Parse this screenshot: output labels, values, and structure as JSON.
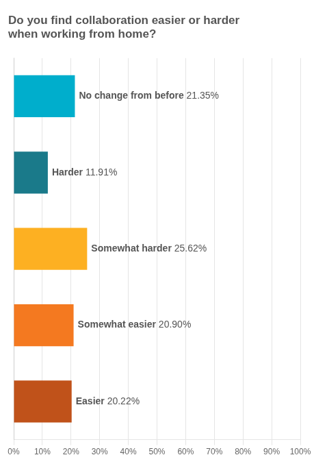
{
  "chart_data": {
    "type": "bar",
    "title": "Do you find collaboration easier or harder\nwhen working from home?",
    "orientation": "horizontal",
    "categories": [
      "Easier",
      "Somewhat easier",
      "Somewhat harder",
      "Harder",
      "No change from before"
    ],
    "values": [
      20.22,
      20.9,
      25.62,
      11.91,
      21.35
    ],
    "value_labels": [
      "20.22%",
      "20.90%",
      "25.62%",
      "11.91%",
      "21.35%"
    ],
    "data_labels": true,
    "colors": [
      "#C0521A",
      "#F47920",
      "#FDB022",
      "#1A7A8A",
      "#00AECC"
    ],
    "xlim": [
      0,
      100
    ],
    "xticks": [
      {
        "value": 0,
        "label": "0%"
      },
      {
        "value": 10,
        "label": "10%"
      },
      {
        "value": 20,
        "label": "20%"
      },
      {
        "value": 30,
        "label": "30%"
      },
      {
        "value": 40,
        "label": "40%"
      },
      {
        "value": 50,
        "label": "50%"
      },
      {
        "value": 60,
        "label": "60%"
      },
      {
        "value": 70,
        "label": "70%"
      },
      {
        "value": 80,
        "label": "80%"
      },
      {
        "value": 90,
        "label": "90%"
      },
      {
        "value": 100,
        "label": "100%"
      }
    ],
    "grid": true,
    "tick_labels": "x"
  }
}
